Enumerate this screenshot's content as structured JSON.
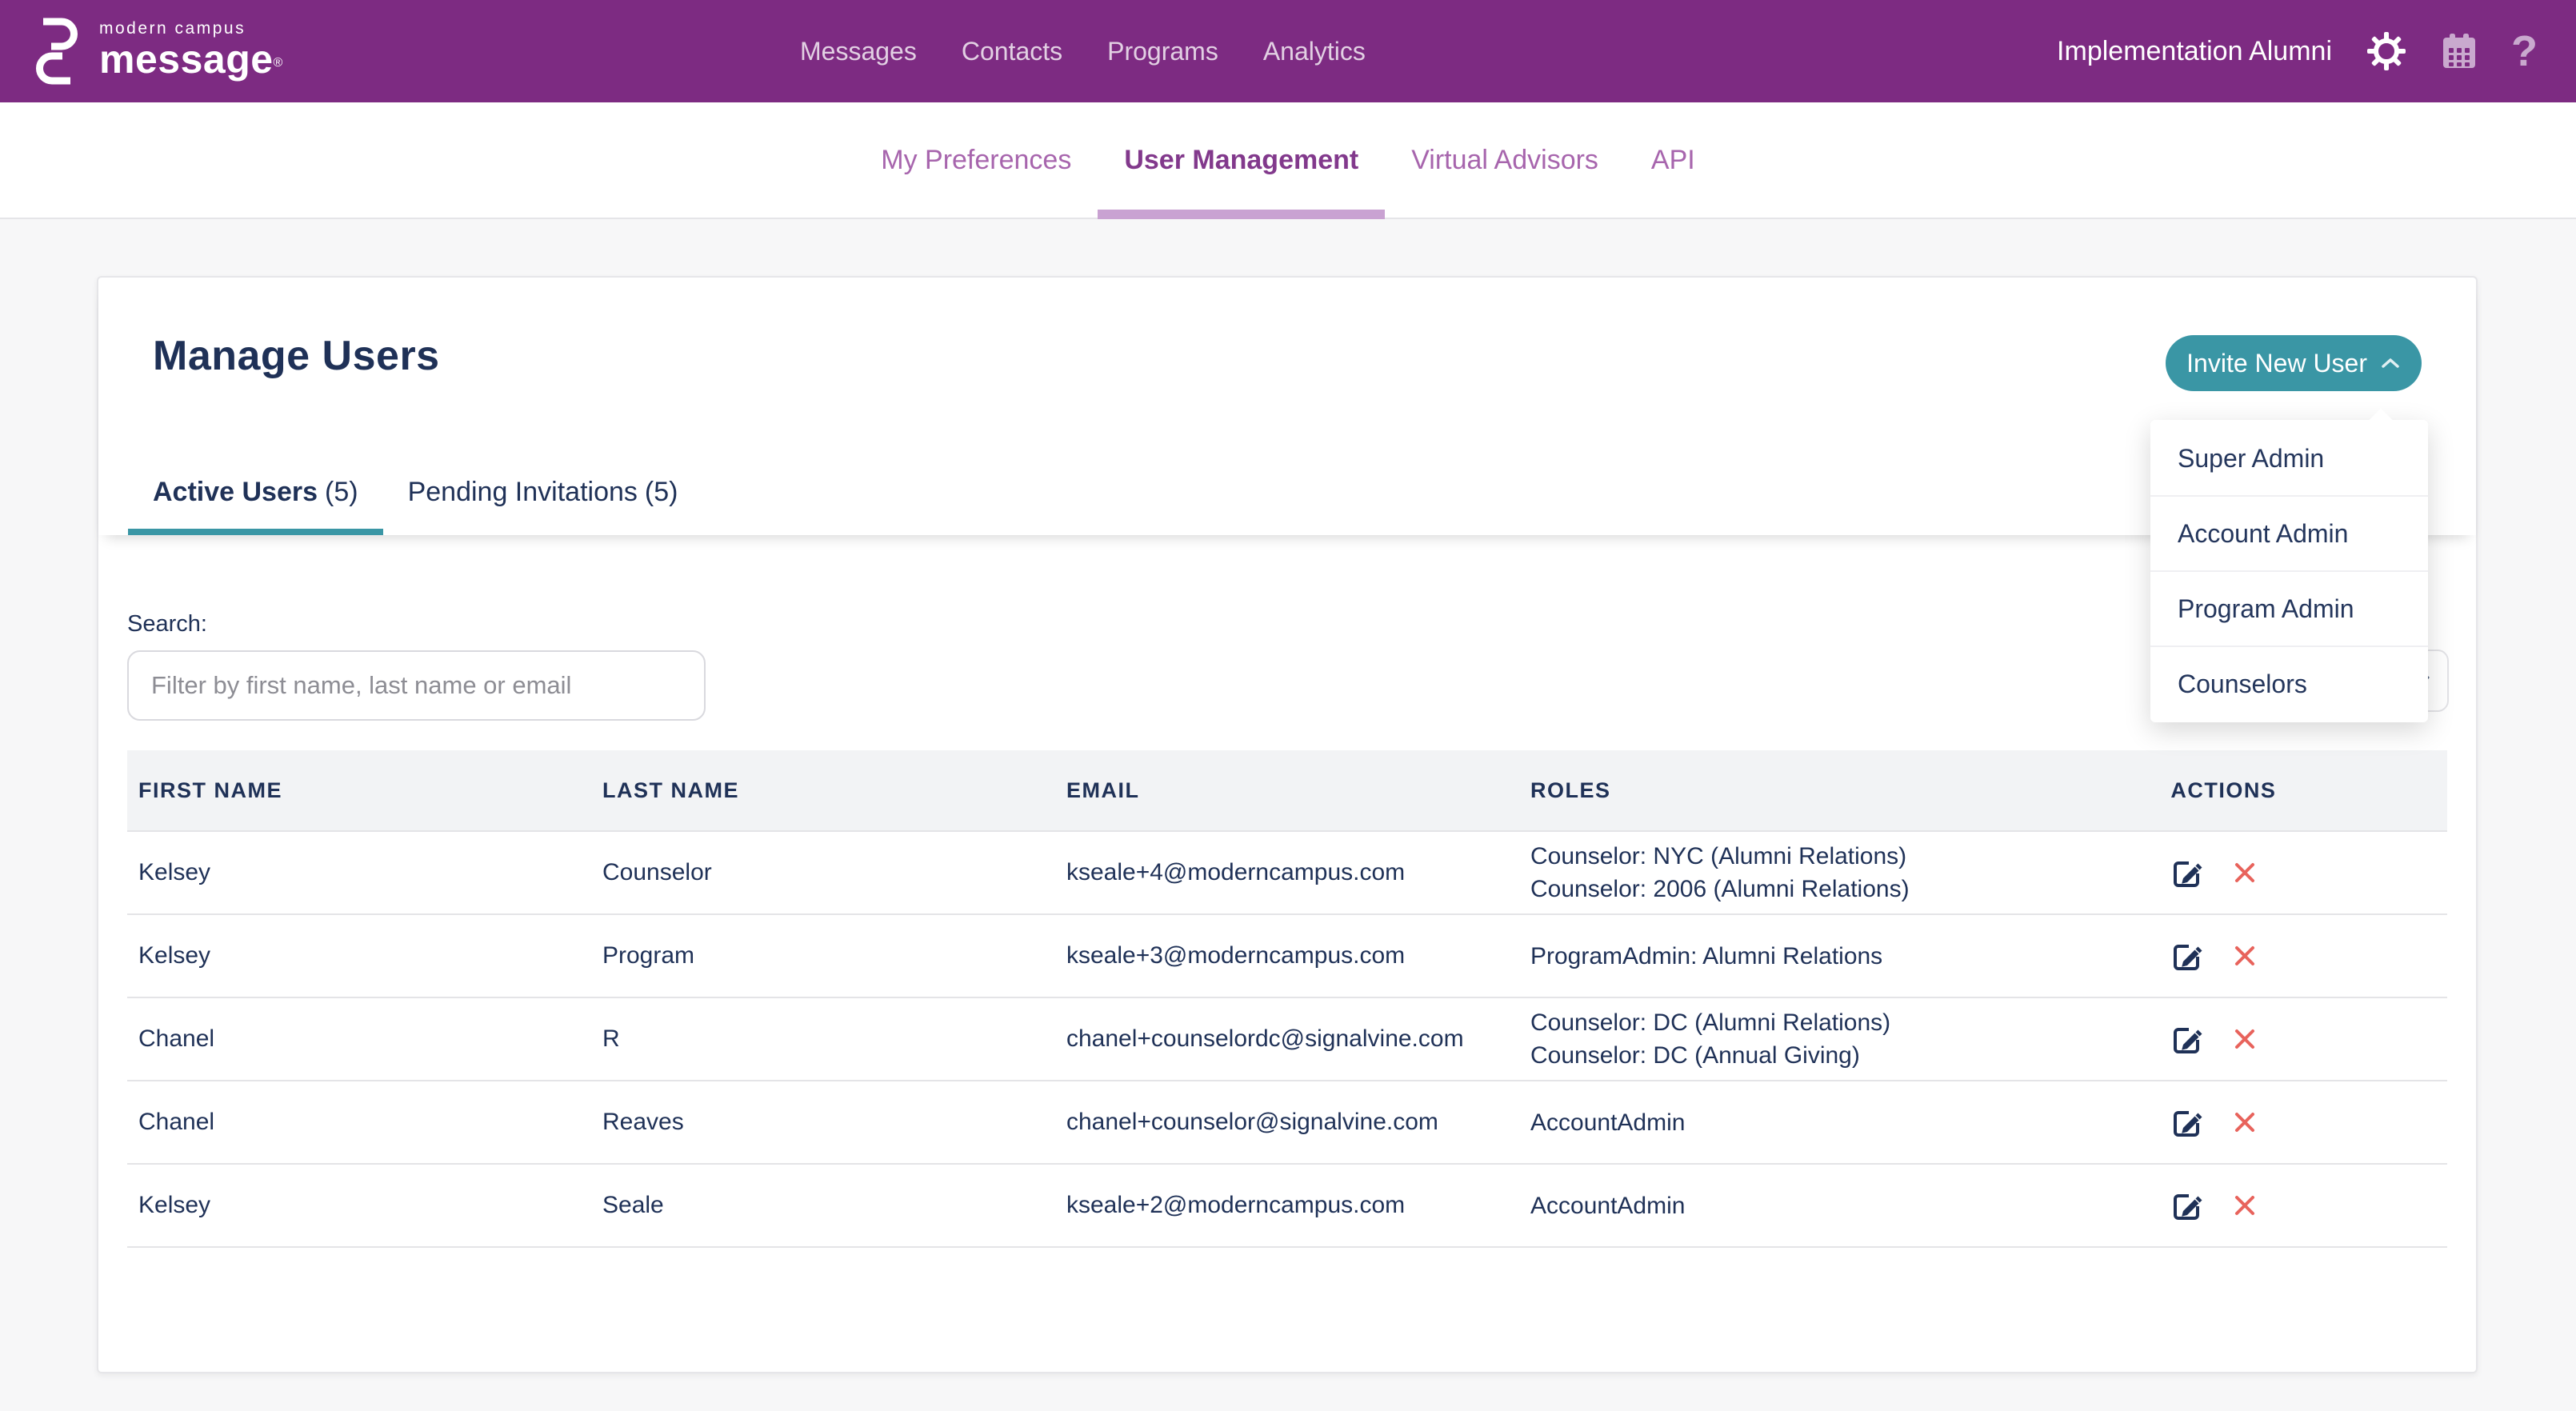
{
  "brand": {
    "top": "modern campus",
    "bottom": "message",
    "registered": "®"
  },
  "top_nav": {
    "items": [
      "Messages",
      "Contacts",
      "Programs",
      "Analytics"
    ],
    "account_label": "Implementation Alumni",
    "help_glyph": "?"
  },
  "sub_nav": {
    "items": [
      "My Preferences",
      "User Management",
      "Virtual Advisors",
      "API"
    ],
    "active": "User Management"
  },
  "page": {
    "title": "Manage Users",
    "invite_button_label": "Invite New User"
  },
  "invite_menu": {
    "items": [
      "Super Admin",
      "Account Admin",
      "Program Admin",
      "Counselors"
    ]
  },
  "tabs": [
    {
      "label": "Active Users",
      "count": "(5)"
    },
    {
      "label": "Pending Invitations",
      "count": "(5)"
    }
  ],
  "search": {
    "label": "Search:",
    "placeholder": "Filter by first name, last name or email"
  },
  "table": {
    "headers": [
      "FIRST NAME",
      "LAST NAME",
      "EMAIL",
      "ROLES",
      "ACTIONS"
    ],
    "rows": [
      {
        "first_name": "Kelsey",
        "last_name": "Counselor",
        "email": "kseale+4@moderncampus.com",
        "roles": [
          "Counselor: NYC (Alumni Relations)",
          "Counselor: 2006 (Alumni Relations)"
        ]
      },
      {
        "first_name": "Kelsey",
        "last_name": "Program",
        "email": "kseale+3@moderncampus.com",
        "roles": [
          "ProgramAdmin: Alumni Relations"
        ]
      },
      {
        "first_name": "Chanel",
        "last_name": "R",
        "email": "chanel+counselordc@signalvine.com",
        "roles": [
          "Counselor: DC (Alumni Relations)",
          "Counselor: DC (Annual Giving)"
        ]
      },
      {
        "first_name": "Chanel",
        "last_name": "Reaves",
        "email": "chanel+counselor@signalvine.com",
        "roles": [
          "AccountAdmin"
        ]
      },
      {
        "first_name": "Kelsey",
        "last_name": "Seale",
        "email": "kseale+2@moderncampus.com",
        "roles": [
          "AccountAdmin"
        ]
      }
    ]
  },
  "colors": {
    "header_purple": "#7d2b82",
    "accent_teal": "#3a96a5",
    "navy_text": "#1f3157",
    "danger_red": "#e8635c",
    "lavender_icon": "#c9a9ce",
    "sub_nav_purple": "#a765ad",
    "sub_nav_active": "#82398c",
    "active_underline_mauve": "#c9a2d2"
  }
}
